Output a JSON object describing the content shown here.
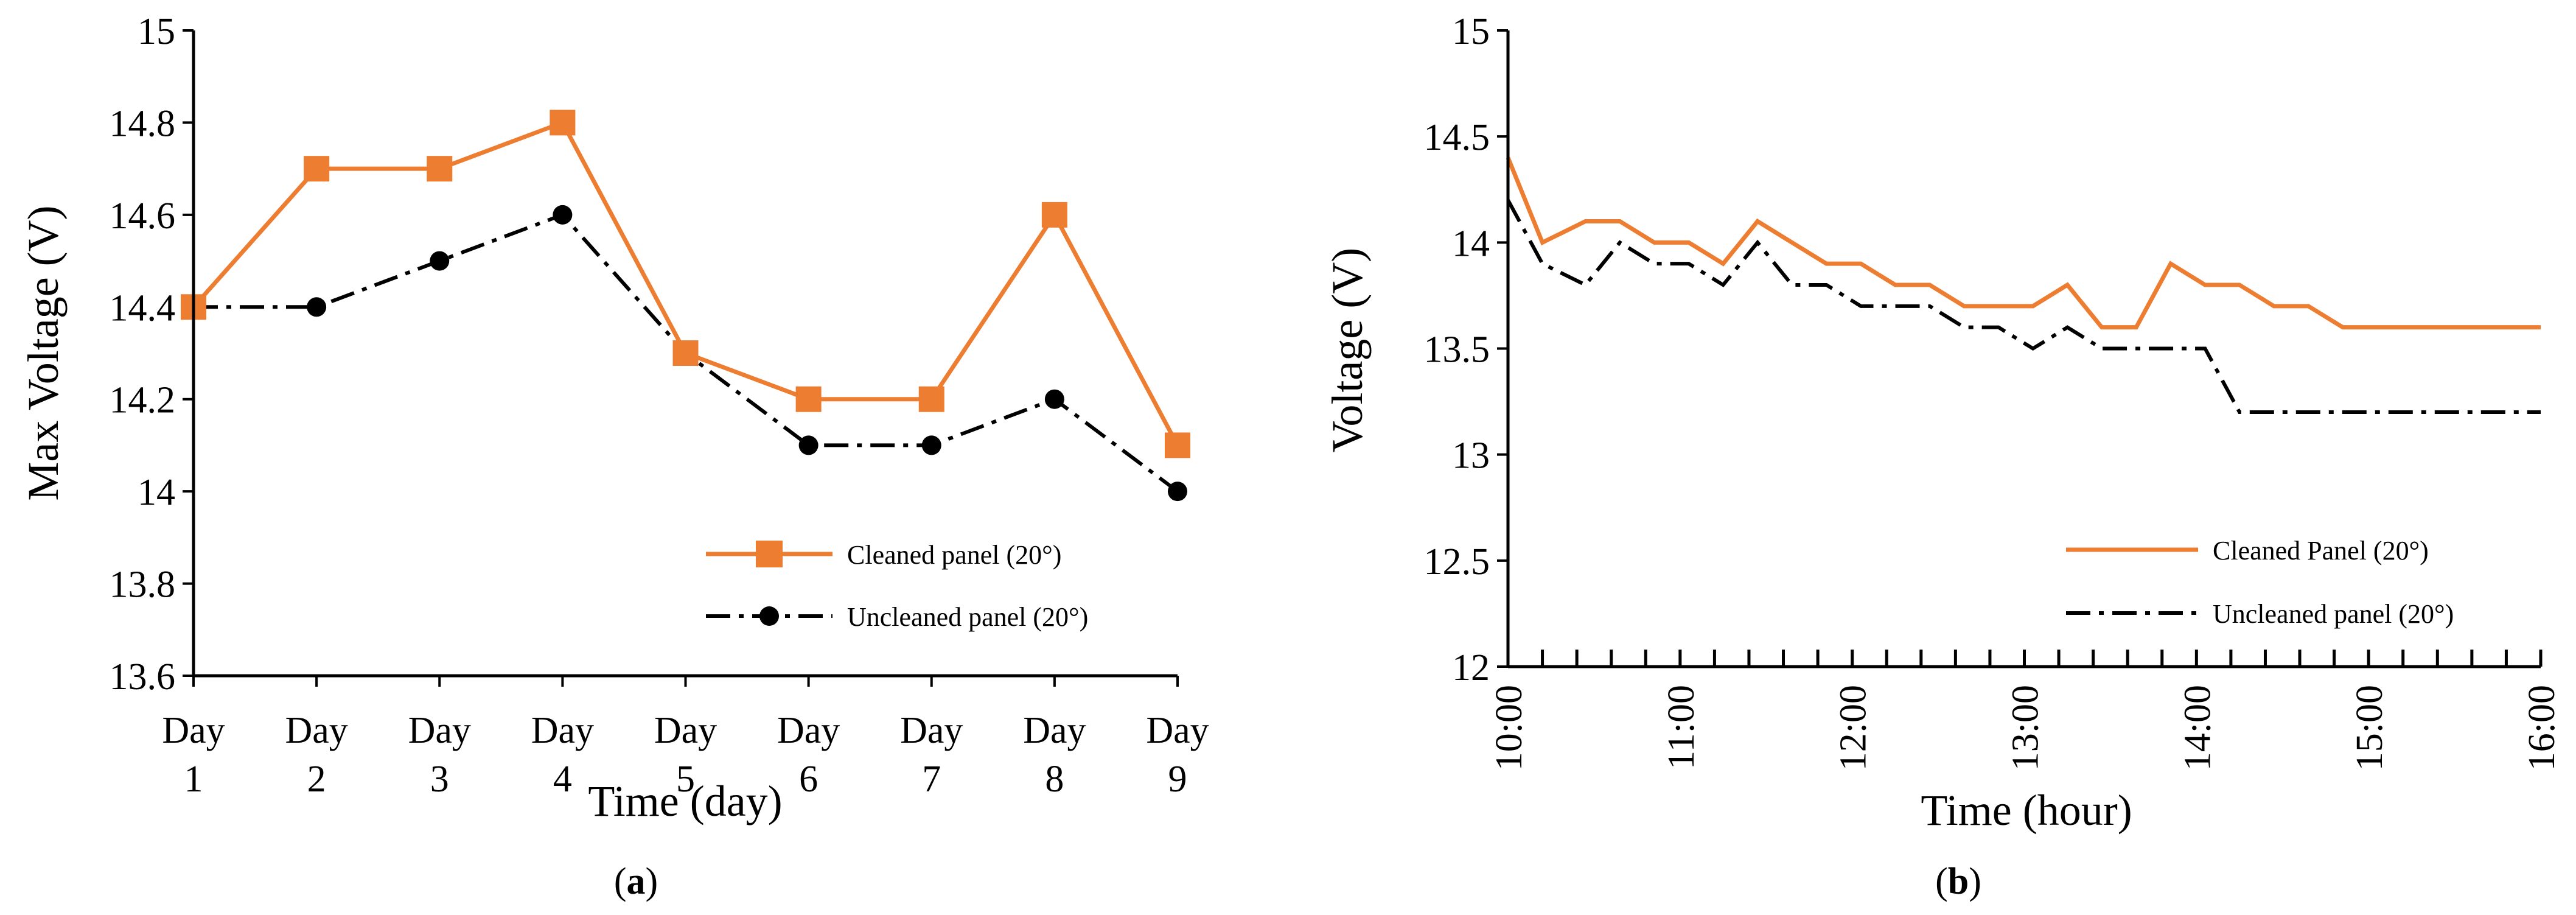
{
  "colors": {
    "cleaned": "#ED7D31",
    "uncleaned": "#000000",
    "axis": "#000000"
  },
  "chart_data": [
    {
      "panel": "a",
      "type": "line",
      "caption_letter": "a",
      "xlabel": "Time (day)",
      "ylabel": "Max Voltage (V)",
      "ylim": [
        13.6,
        15
      ],
      "yticks": [
        "13.6",
        "13.8",
        "14",
        "14.2",
        "14.4",
        "14.6",
        "14.8",
        "15"
      ],
      "categories": [
        {
          "line1": "Day",
          "line2": "1"
        },
        {
          "line1": "Day",
          "line2": "2"
        },
        {
          "line1": "Day",
          "line2": "3"
        },
        {
          "line1": "Day",
          "line2": "4"
        },
        {
          "line1": "Day",
          "line2": "5"
        },
        {
          "line1": "Day",
          "line2": "6"
        },
        {
          "line1": "Day",
          "line2": "7"
        },
        {
          "line1": "Day",
          "line2": "8"
        },
        {
          "line1": "Day",
          "line2": "9"
        }
      ],
      "series": [
        {
          "name": "Cleaned panel (20°)",
          "style": "solid-square",
          "values": [
            14.4,
            14.7,
            14.7,
            14.8,
            14.3,
            14.2,
            14.2,
            14.6,
            14.1
          ]
        },
        {
          "name": "Uncleaned panel (20°)",
          "style": "dashdot-circle",
          "values": [
            14.4,
            14.4,
            14.5,
            14.6,
            14.3,
            14.1,
            14.1,
            14.2,
            14.0
          ]
        }
      ],
      "legend_position": "bottom-right",
      "grid": false
    },
    {
      "panel": "b",
      "type": "line",
      "caption_letter": "b",
      "xlabel": "Time (hour)",
      "ylabel": "Voltage (V)",
      "ylim": [
        12,
        15
      ],
      "yticks": [
        "12",
        "12.5",
        "13",
        "13.5",
        "14",
        "14.5",
        "15"
      ],
      "xlim": [
        10,
        16
      ],
      "xticks": [
        "10:00",
        "11:00",
        "12:00",
        "13:00",
        "14:00",
        "15:00",
        "16:00"
      ],
      "x": [
        10.0,
        10.2,
        10.45,
        10.65,
        10.85,
        11.05,
        11.25,
        11.45,
        11.65,
        11.85,
        12.05,
        12.25,
        12.45,
        12.65,
        12.85,
        13.05,
        13.25,
        13.45,
        13.65,
        13.85,
        14.05,
        14.25,
        14.45,
        14.65,
        14.85,
        15.05,
        15.25,
        15.45,
        15.65,
        15.85,
        16.0
      ],
      "series": [
        {
          "name": "Cleaned Panel (20°)",
          "style": "solid",
          "values": [
            14.4,
            14.0,
            14.1,
            14.1,
            14.0,
            14.0,
            13.9,
            14.1,
            14.0,
            13.9,
            13.9,
            13.8,
            13.8,
            13.7,
            13.7,
            13.7,
            13.8,
            13.6,
            13.6,
            13.9,
            13.8,
            13.8,
            13.7,
            13.7,
            13.6,
            13.6,
            13.6,
            13.6,
            13.6,
            13.6,
            13.6
          ]
        },
        {
          "name": "Uncleaned panel (20°)",
          "style": "dashdot",
          "values": [
            14.2,
            13.9,
            13.8,
            14.0,
            13.9,
            13.9,
            13.8,
            14.0,
            13.8,
            13.8,
            13.7,
            13.7,
            13.7,
            13.6,
            13.6,
            13.5,
            13.6,
            13.5,
            13.5,
            13.5,
            13.5,
            13.2,
            13.2,
            13.2,
            13.2,
            13.2,
            13.2,
            13.2,
            13.2,
            13.2,
            13.2
          ]
        }
      ],
      "legend_position": "bottom-right",
      "grid": false
    }
  ]
}
